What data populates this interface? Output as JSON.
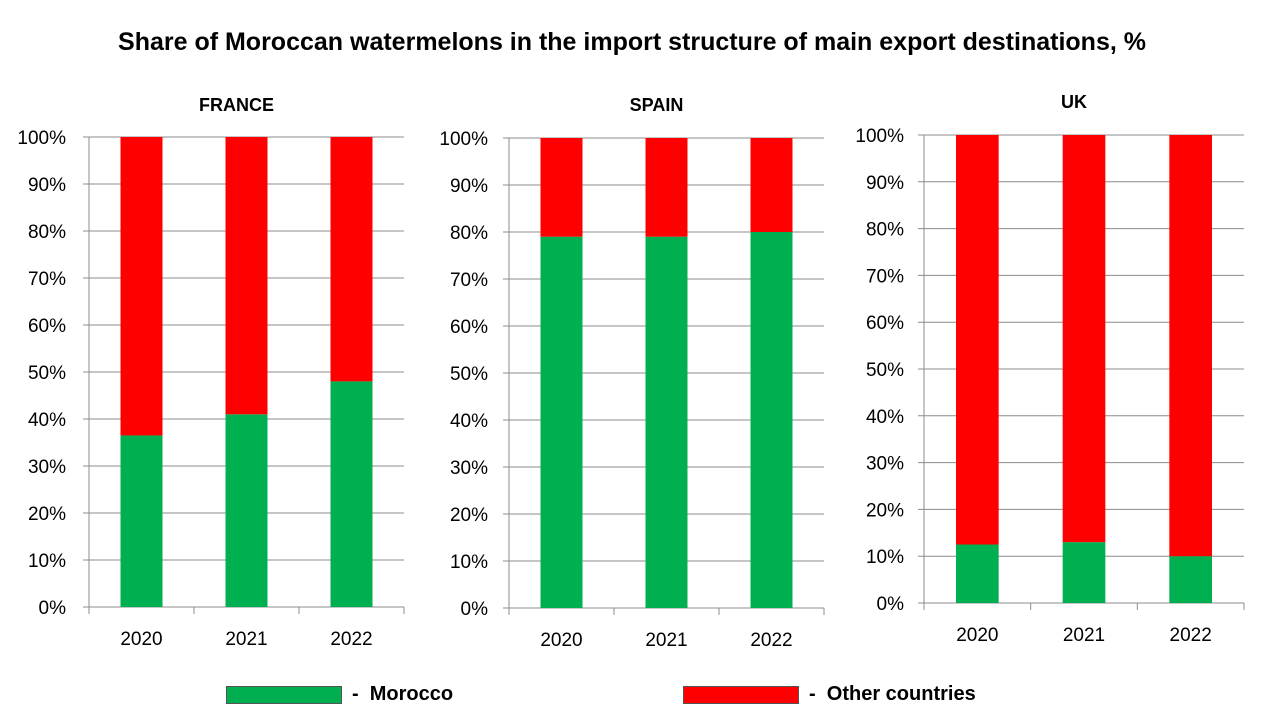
{
  "title": "Share of Moroccan watermelons in the import structure of main export destinations, %",
  "legend": [
    {
      "label": "-  Morocco",
      "color": "#00B050"
    },
    {
      "label": "-  Other countries",
      "color": "#FF0000"
    }
  ],
  "chart_data": [
    {
      "type": "bar",
      "stacked": "percent",
      "title": "FRANCE",
      "categories": [
        "2020",
        "2021",
        "2022"
      ],
      "series": [
        {
          "name": "Morocco",
          "color": "#00B050",
          "values": [
            36.5,
            41,
            48
          ]
        },
        {
          "name": "Other countries",
          "color": "#FF0000",
          "values": [
            63.5,
            59,
            52
          ]
        }
      ],
      "ylim": [
        0,
        100
      ],
      "yticks": [
        "0%",
        "10%",
        "20%",
        "30%",
        "40%",
        "50%",
        "60%",
        "70%",
        "80%",
        "90%",
        "100%"
      ],
      "grid": true
    },
    {
      "type": "bar",
      "stacked": "percent",
      "title": "SPAIN",
      "categories": [
        "2020",
        "2021",
        "2022"
      ],
      "series": [
        {
          "name": "Morocco",
          "color": "#00B050",
          "values": [
            79,
            79,
            80
          ]
        },
        {
          "name": "Other countries",
          "color": "#FF0000",
          "values": [
            21,
            21,
            20
          ]
        }
      ],
      "ylim": [
        0,
        100
      ],
      "yticks": [
        "0%",
        "10%",
        "20%",
        "30%",
        "40%",
        "50%",
        "60%",
        "70%",
        "80%",
        "90%",
        "100%"
      ],
      "grid": true
    },
    {
      "type": "bar",
      "stacked": "percent",
      "title": "UK",
      "categories": [
        "2020",
        "2021",
        "2022"
      ],
      "series": [
        {
          "name": "Morocco",
          "color": "#00B050",
          "values": [
            12.5,
            13,
            10
          ]
        },
        {
          "name": "Other countries",
          "color": "#FF0000",
          "values": [
            87.5,
            87,
            90
          ]
        }
      ],
      "ylim": [
        0,
        100
      ],
      "yticks": [
        "0%",
        "10%",
        "20%",
        "30%",
        "40%",
        "50%",
        "60%",
        "70%",
        "80%",
        "90%",
        "100%"
      ],
      "grid": true
    }
  ]
}
